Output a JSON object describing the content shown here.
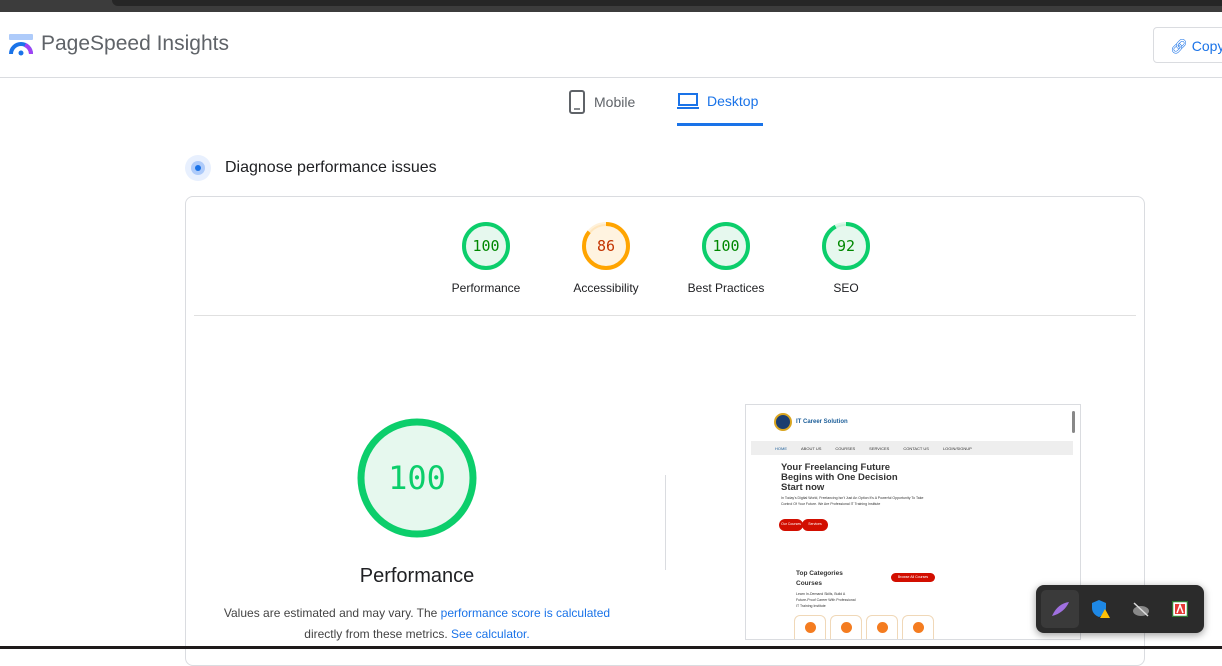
{
  "header": {
    "title": "PageSpeed Insights",
    "copy_label": "Copy"
  },
  "tabs": [
    {
      "label": "Mobile",
      "icon": "phone-icon",
      "active": false
    },
    {
      "label": "Desktop",
      "icon": "laptop-icon",
      "active": true
    }
  ],
  "section": {
    "title": "Diagnose performance issues"
  },
  "scores": [
    {
      "label": "Performance",
      "value": "100",
      "color": "#0cce6b"
    },
    {
      "label": "Accessibility",
      "value": "86",
      "color": "#ffa400"
    },
    {
      "label": "Best Practices",
      "value": "100",
      "color": "#0cce6b"
    },
    {
      "label": "SEO",
      "value": "92",
      "color": "#0cce6b"
    }
  ],
  "main": {
    "score": "100",
    "title": "Performance",
    "note_1": "Values are estimated and may vary. The ",
    "note_link_1": "performance score is calculated",
    "note_2": " directly from these metrics. ",
    "note_link_2": "See calculator."
  },
  "screenshot": {
    "brand": "IT Career Solution",
    "nav": [
      "HOME",
      "ABOUT US",
      "COURSES",
      "SERVICES",
      "CONTACT US",
      "LOGIN/SIGNUP"
    ],
    "headline": "Your Freelancing Future Begins with One Decision Start now",
    "para": "In Today's Digital World, Freelancing Isn't Just An Option It's A Powerful Opportunity To Take Control Of Your Future. We Are Professional IT Training Institute",
    "btn1": "Our Courses",
    "btn2": "Services",
    "categories_title": "Top Categories Courses",
    "categories_text": "Learn In-Demand Skills, Build A Future-Proof Career With Professional IT Training Institute",
    "browse": "Browse All Courses"
  },
  "tray": [
    "feather-icon",
    "defender-warning-icon",
    "cloud-off-icon",
    "adobe-icon"
  ]
}
